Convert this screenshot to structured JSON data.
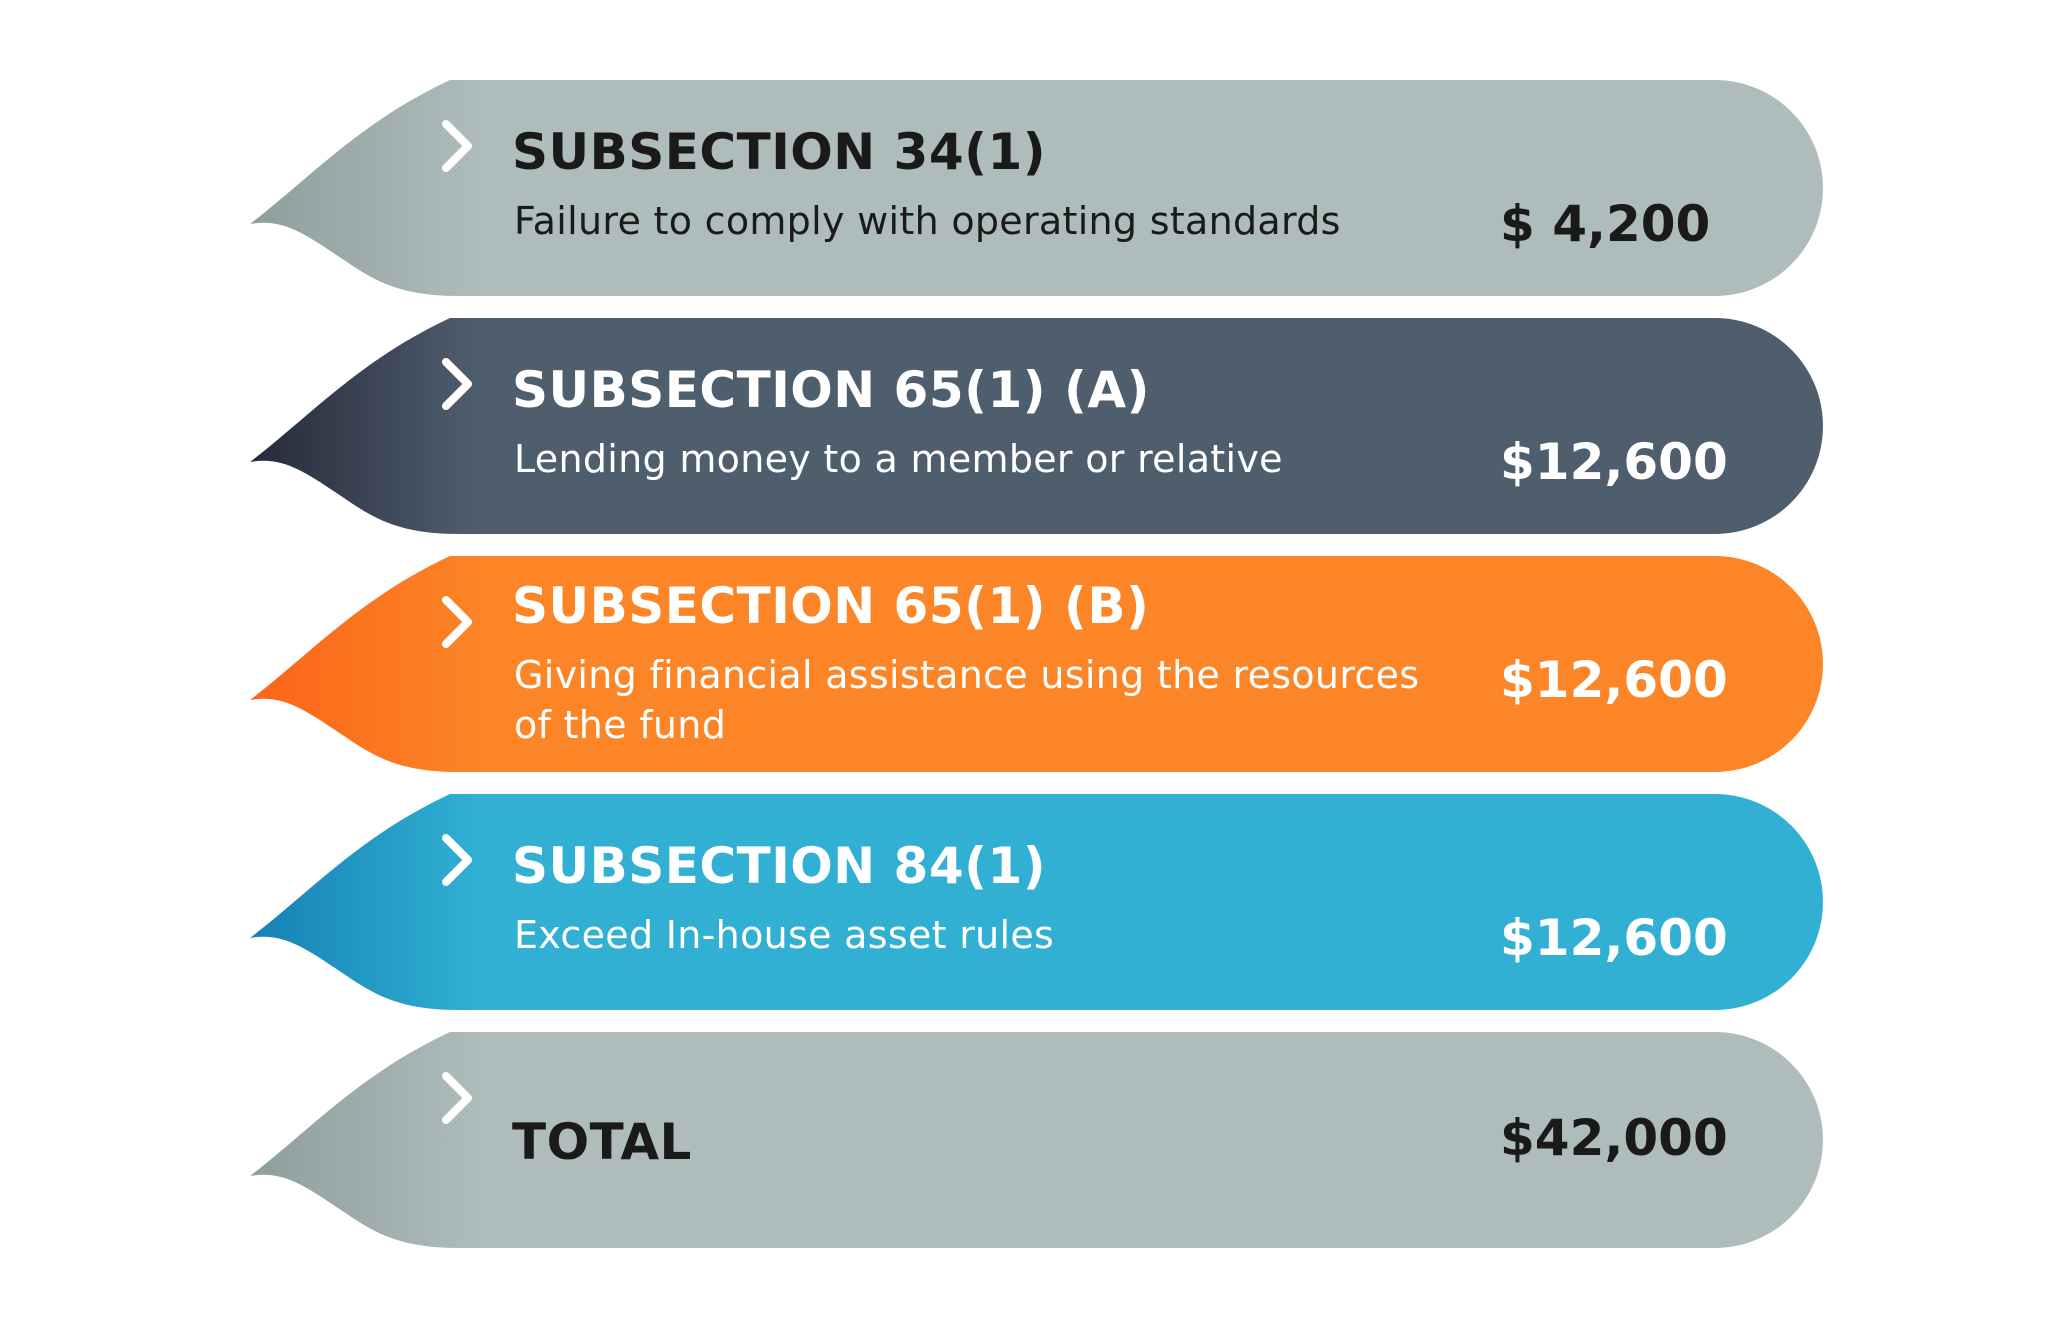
{
  "rows": [
    {
      "title": "SUBSECTION 34(1)",
      "description": "Failure to comply with operating standards",
      "amount": "$ 4,200",
      "color": "#aebcbb",
      "tail_color": "#8e9e9d",
      "text_tone": "dark"
    },
    {
      "title": "SUBSECTION 65(1) (A)",
      "description": "Lending money to a member or relative",
      "amount": "$12,600",
      "color": "#4f5e6d",
      "tail_color": "#262a3a",
      "text_tone": "light"
    },
    {
      "title": "SUBSECTION 65(1) (B)",
      "description": "Giving financial assistance using the resources of the fund",
      "amount": "$12,600",
      "color": "#fb8527",
      "tail_color": "#fb6418",
      "text_tone": "light"
    },
    {
      "title": "SUBSECTION 84(1)",
      "description": "Exceed In-house asset rules",
      "amount": "$12,600",
      "color": "#31b0d4",
      "tail_color": "#1581b4",
      "text_tone": "light"
    },
    {
      "title": "TOTAL",
      "description": "",
      "amount": "$42,000",
      "color": "#aebcbb",
      "tail_color": "#8e9e9d",
      "text_tone": "dark"
    }
  ],
  "chevron_icon": "chevron-right-icon"
}
